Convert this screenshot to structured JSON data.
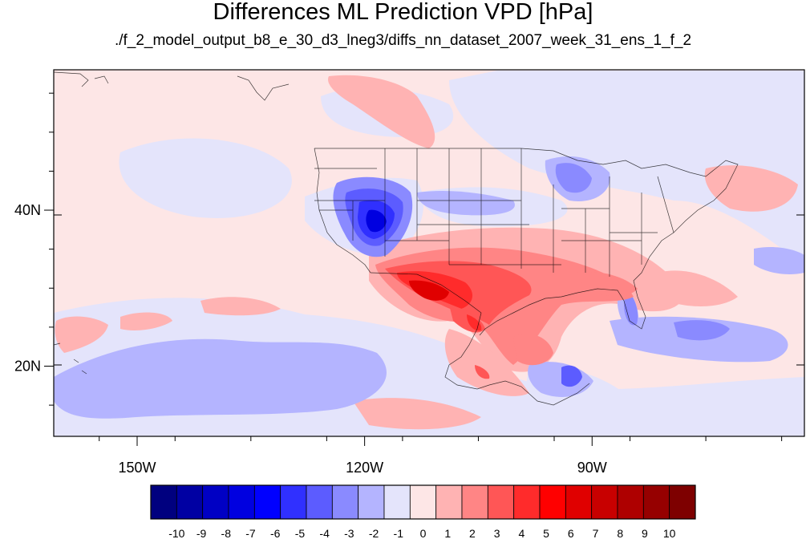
{
  "title": "Differences ML Prediction VPD [hPa]",
  "subtitle": "./f_2_model_output_b8_e_30_d3_lneg3/diffs_nn_dataset_2007_week_31_ens_1_f_2",
  "map": {
    "lon_range": [
      -161,
      -62
    ],
    "lat_range": [
      11,
      58
    ],
    "lon_ticks": [
      {
        "value": -150,
        "label": "150W"
      },
      {
        "value": -120,
        "label": "120W"
      },
      {
        "value": -90,
        "label": "90W"
      }
    ],
    "lat_ticks": [
      {
        "value": 40,
        "label": "40N"
      },
      {
        "value": 20,
        "label": "20N"
      }
    ]
  },
  "colorbar": {
    "colors": [
      "#00007f",
      "#0000a3",
      "#0000c4",
      "#0000e0",
      "#0000ff",
      "#3030ff",
      "#5c5cff",
      "#8a8aff",
      "#b4b4ff",
      "#e4e4fb",
      "#fde6e6",
      "#ffb3b3",
      "#ff8585",
      "#ff5656",
      "#ff2b2b",
      "#ff0000",
      "#e00000",
      "#c80000",
      "#ae0000",
      "#960000",
      "#7e0000"
    ],
    "labels": [
      "-10",
      "-9",
      "-8",
      "-7",
      "-6",
      "-5",
      "-4",
      "-3",
      "-2",
      "-1",
      "0",
      "1",
      "2",
      "3",
      "4",
      "5",
      "6",
      "7",
      "8",
      "9",
      "10"
    ]
  }
}
